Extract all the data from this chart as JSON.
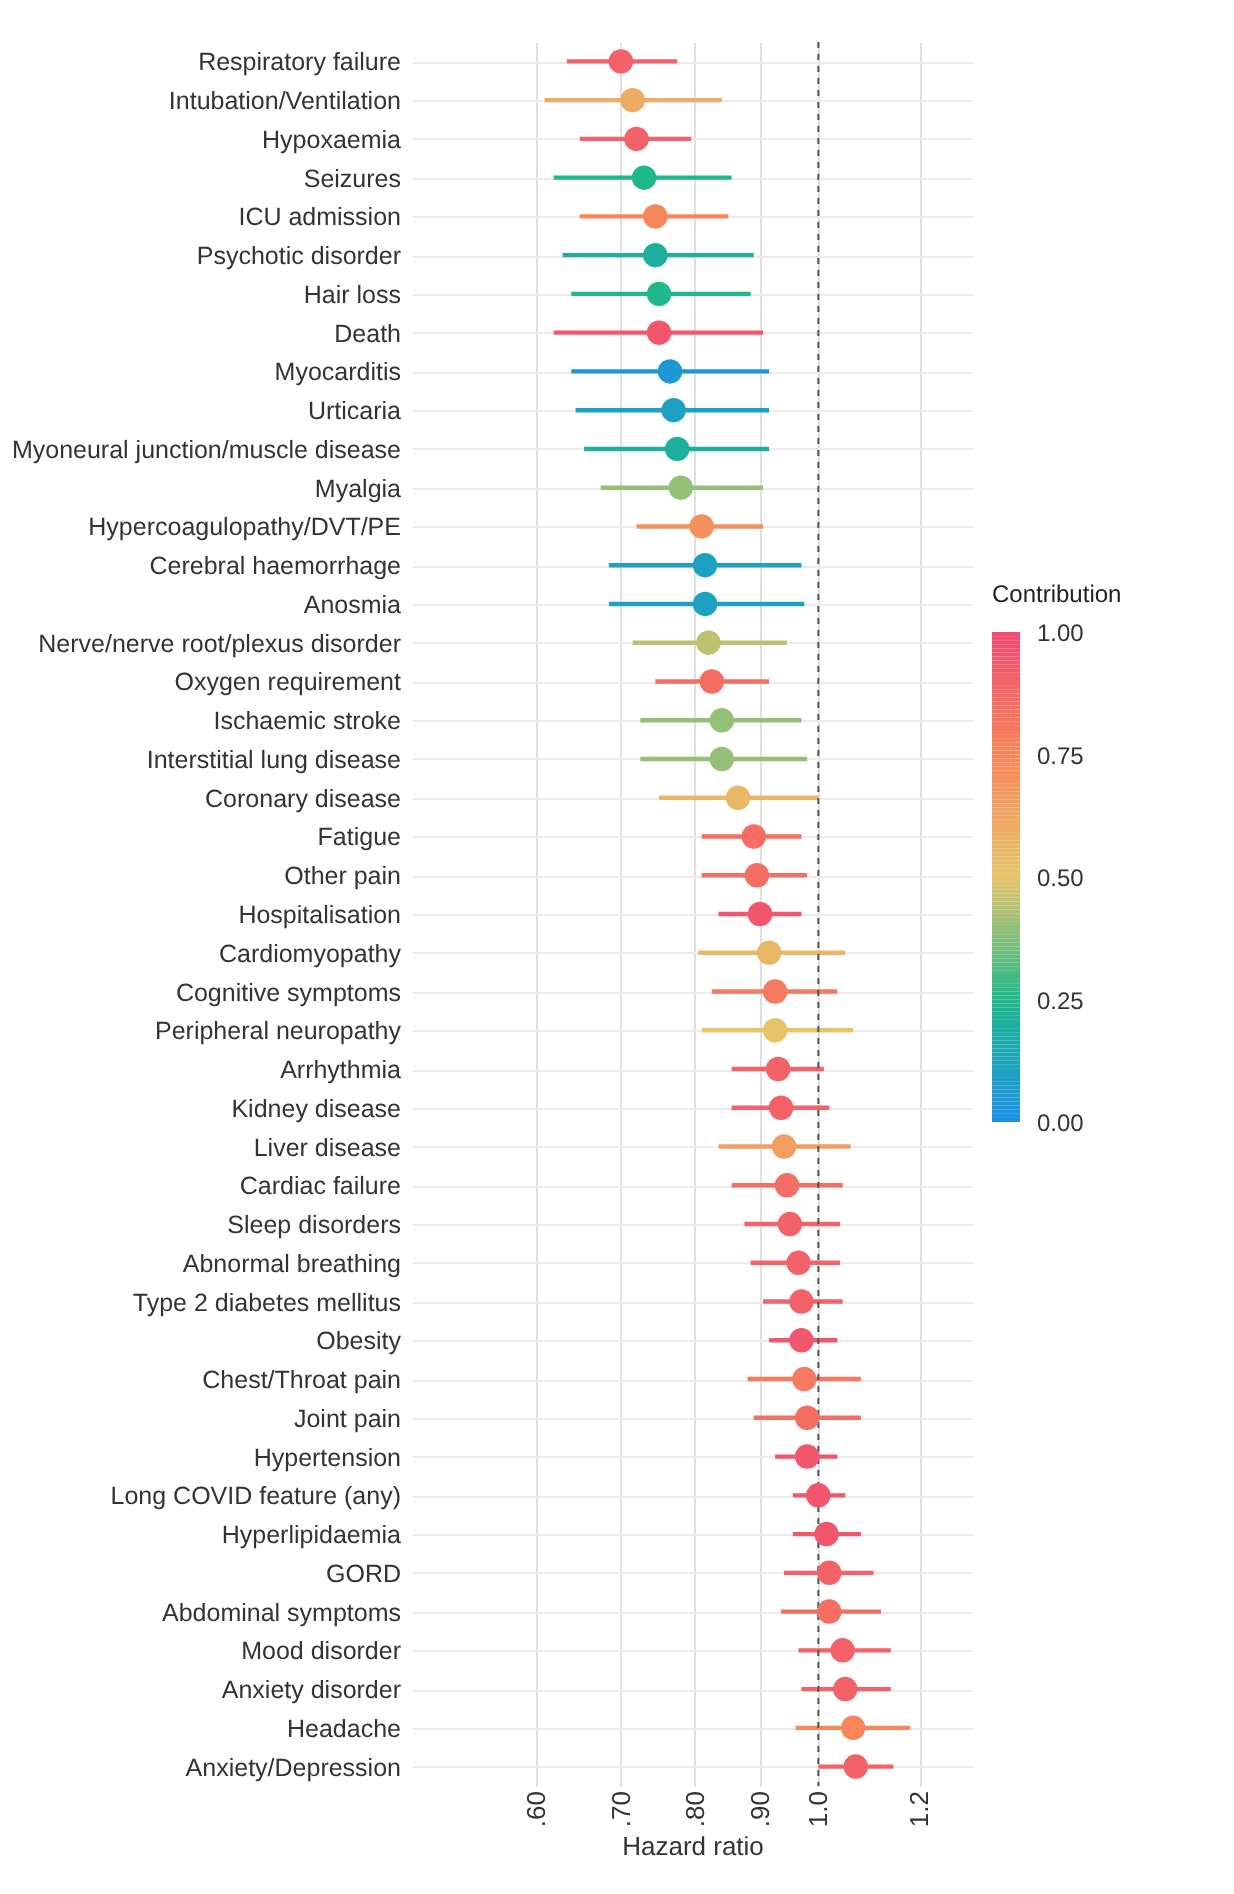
{
  "chart_data": {
    "type": "scatter",
    "orientation": "horizontal",
    "xlabel": "Hazard ratio",
    "clabel": "Contribution",
    "categories": [
      "Respiratory failure",
      "Intubation/Ventilation",
      "Hypoxaemia",
      "Seizures",
      "ICU admission",
      "Psychotic disorder",
      "Hair loss",
      "Death",
      "Myocarditis",
      "Urticaria",
      "Myoneural junction/muscle disease",
      "Myalgia",
      "Hypercoagulopathy/DVT/PE",
      "Cerebral haemorrhage",
      "Anosmia",
      "Nerve/nerve root/plexus disorder",
      "Oxygen requirement",
      "Ischaemic stroke",
      "Interstitial lung disease",
      "Coronary disease",
      "Fatigue",
      "Other pain",
      "Hospitalisation",
      "Cardiomyopathy",
      "Cognitive symptoms",
      "Peripheral neuropathy",
      "Arrhythmia",
      "Kidney disease",
      "Liver disease",
      "Cardiac failure",
      "Sleep disorders",
      "Abnormal breathing",
      "Type 2 diabetes mellitus",
      "Obesity",
      "Chest/Throat pain",
      "Joint pain",
      "Hypertension",
      "Long COVID feature (any)",
      "Hyperlipidaemia",
      "GORD",
      "Abdominal symptoms",
      "Mood disorder",
      "Anxiety disorder",
      "Headache",
      "Anxiety/Depression"
    ],
    "values": [
      0.7,
      0.715,
      0.72,
      0.73,
      0.745,
      0.745,
      0.75,
      0.75,
      0.765,
      0.77,
      0.775,
      0.78,
      0.81,
      0.815,
      0.815,
      0.82,
      0.825,
      0.84,
      0.84,
      0.865,
      0.89,
      0.895,
      0.9,
      0.915,
      0.925,
      0.925,
      0.93,
      0.935,
      0.94,
      0.945,
      0.95,
      0.965,
      0.97,
      0.97,
      0.975,
      0.98,
      0.98,
      1.0,
      1.015,
      1.02,
      1.02,
      1.045,
      1.05,
      1.065,
      1.07
    ],
    "errors": [
      [
        0.635,
        0.775
      ],
      [
        0.61,
        0.84
      ],
      [
        0.65,
        0.795
      ],
      [
        0.62,
        0.855
      ],
      [
        0.65,
        0.85
      ],
      [
        0.63,
        0.89
      ],
      [
        0.64,
        0.885
      ],
      [
        0.62,
        0.905
      ],
      [
        0.64,
        0.915
      ],
      [
        0.645,
        0.915
      ],
      [
        0.655,
        0.915
      ],
      [
        0.675,
        0.905
      ],
      [
        0.72,
        0.905
      ],
      [
        0.685,
        0.97
      ],
      [
        0.685,
        0.975
      ],
      [
        0.715,
        0.945
      ],
      [
        0.745,
        0.915
      ],
      [
        0.725,
        0.97
      ],
      [
        0.725,
        0.98
      ],
      [
        0.75,
        1.0
      ],
      [
        0.81,
        0.97
      ],
      [
        0.81,
        0.98
      ],
      [
        0.835,
        0.97
      ],
      [
        0.805,
        1.05
      ],
      [
        0.825,
        1.035
      ],
      [
        0.81,
        1.065
      ],
      [
        0.855,
        1.01
      ],
      [
        0.855,
        1.02
      ],
      [
        0.835,
        1.06
      ],
      [
        0.855,
        1.045
      ],
      [
        0.875,
        1.04
      ],
      [
        0.885,
        1.04
      ],
      [
        0.905,
        1.045
      ],
      [
        0.915,
        1.035
      ],
      [
        0.88,
        1.08
      ],
      [
        0.89,
        1.08
      ],
      [
        0.925,
        1.035
      ],
      [
        0.955,
        1.05
      ],
      [
        0.955,
        1.08
      ],
      [
        0.94,
        1.105
      ],
      [
        0.935,
        1.12
      ],
      [
        0.965,
        1.14
      ],
      [
        0.97,
        1.14
      ],
      [
        0.96,
        1.18
      ],
      [
        1.0,
        1.145
      ]
    ],
    "cvalues": [
      0.9,
      0.6,
      0.9,
      0.25,
      0.75,
      0.2,
      0.25,
      0.95,
      0.05,
      0.1,
      0.2,
      0.4,
      0.7,
      0.1,
      0.1,
      0.45,
      0.85,
      0.4,
      0.4,
      0.55,
      0.85,
      0.85,
      0.95,
      0.55,
      0.8,
      0.5,
      0.9,
      0.9,
      0.65,
      0.85,
      0.9,
      0.9,
      0.9,
      0.95,
      0.8,
      0.85,
      0.95,
      0.95,
      0.95,
      0.9,
      0.85,
      0.9,
      0.9,
      0.75,
      0.9
    ],
    "clim": [
      0,
      1
    ],
    "cticks": [
      {
        "value": 0,
        "label": "0.00"
      },
      {
        "value": 0.25,
        "label": "0.25"
      },
      {
        "value": 0.5,
        "label": "0.50"
      },
      {
        "value": 0.75,
        "label": "0.75"
      },
      {
        "value": 1,
        "label": "1.00"
      }
    ],
    "log": "x",
    "xlim": [
      0.48,
      1.32
    ],
    "xticks": [
      {
        "value": 0.6,
        "label": ".60"
      },
      {
        "value": 0.7,
        "label": ".70"
      },
      {
        "value": 0.8,
        "label": ".80"
      },
      {
        "value": 0.9,
        "label": ".90"
      },
      {
        "value": 1.0,
        "label": "1.0"
      },
      {
        "value": 1.2,
        "label": "1.2"
      }
    ],
    "ref_lines": [
      {
        "axis": "x",
        "value": 1.0,
        "label": null,
        "line_style": "dashed",
        "color": "#555555"
      }
    ],
    "grid": true,
    "marker": "circle"
  }
}
